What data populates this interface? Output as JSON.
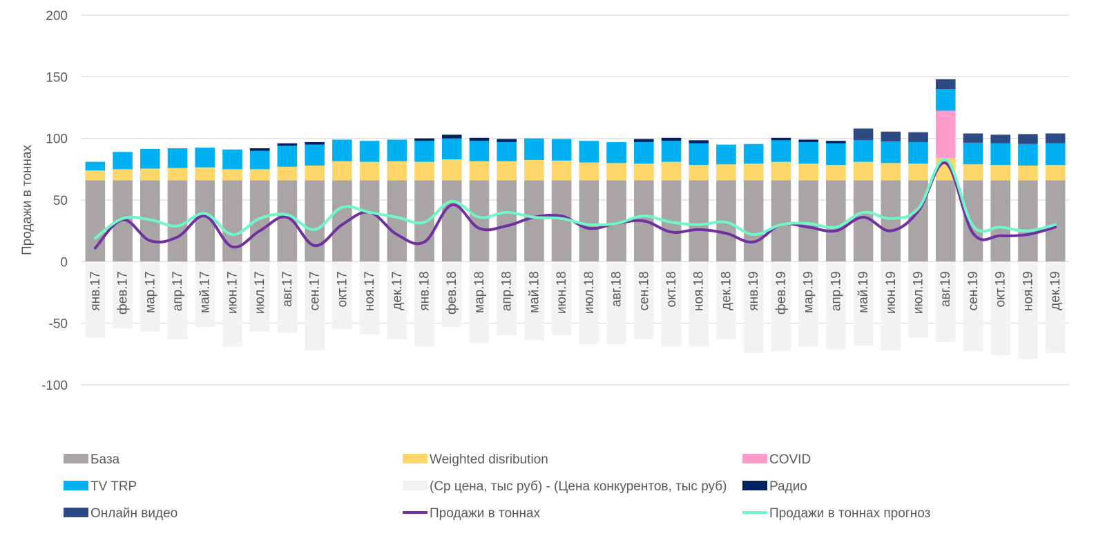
{
  "chart_data": {
    "type": "bar",
    "stacked": true,
    "title": "",
    "xlabel": "",
    "ylabel": "Продажи в тоннах",
    "ylim": [
      -100,
      200
    ],
    "yticks": [
      "200",
      "150",
      "100",
      "50",
      "0",
      "-50",
      "-100"
    ],
    "ytick_values": [
      200,
      150,
      100,
      50,
      0,
      -50,
      -100
    ],
    "grid": true,
    "legend_position": "bottom",
    "categories": [
      "янв.17",
      "фев.17",
      "мар.17",
      "апр.17",
      "май.17",
      "июн.17",
      "июл.17",
      "авг.17",
      "сен.17",
      "окт.17",
      "ноя.17",
      "дек.17",
      "янв.18",
      "фев.18",
      "мар.18",
      "апр.18",
      "май.18",
      "июн.18",
      "июл.18",
      "авг.18",
      "сен.18",
      "окт.18",
      "ноя.18",
      "дек.18",
      "янв.19",
      "фев.19",
      "мар.19",
      "апр.19",
      "май.19",
      "июн.19",
      "июл.19",
      "авг.19",
      "сен.19",
      "окт.19",
      "ноя.19",
      "дек.19"
    ],
    "series": [
      {
        "name": "База",
        "kind": "bar",
        "color": "#a9a5a6",
        "values": [
          66,
          66,
          66,
          66,
          66,
          66,
          66,
          66,
          66,
          66,
          66,
          66,
          66,
          66,
          66,
          66,
          66,
          66,
          66,
          66,
          66,
          66,
          66,
          66,
          66,
          66,
          66,
          66,
          66,
          66,
          66,
          66,
          66,
          66,
          66,
          66
        ]
      },
      {
        "name": "Weighted disribution",
        "kind": "bar",
        "color": "#fcd668",
        "values": [
          8,
          9,
          9.5,
          10,
          10.5,
          9,
          9,
          11,
          12,
          15.5,
          15,
          15.5,
          15,
          17,
          15.5,
          15.5,
          16.5,
          16,
          14.5,
          14,
          13.5,
          15,
          12.5,
          13,
          13.5,
          15,
          13.5,
          12.5,
          15,
          14,
          13.5,
          18,
          13,
          12.5,
          12,
          12.5
        ]
      },
      {
        "name": "COVID",
        "kind": "bar",
        "color": "#fd9cc8",
        "values": [
          0,
          0,
          0,
          0,
          0,
          0,
          0,
          0,
          0,
          0,
          0,
          0,
          0,
          0,
          0,
          0,
          0,
          0,
          0,
          0,
          0,
          0,
          0,
          0,
          0,
          0,
          0,
          0,
          0,
          0,
          0,
          38.5,
          0,
          0,
          0,
          0
        ]
      },
      {
        "name": "TV TRP",
        "kind": "bar",
        "color": "#00b0f0",
        "values": [
          7,
          14,
          16,
          16,
          16,
          16,
          15,
          17,
          17,
          17.5,
          17,
          17.5,
          17,
          17,
          16.5,
          15.5,
          17.5,
          17.5,
          17.5,
          17,
          17.5,
          17,
          17.5,
          16,
          16,
          17.5,
          17.5,
          17.5,
          17.5,
          17.5,
          17.5,
          17.5,
          17.5,
          17.5,
          17.5,
          17.5
        ]
      },
      {
        "name": "(Ср цена, тыс руб) - (Цена конкурентов, тыс руб)",
        "kind": "bar",
        "color": "#f2f2f2",
        "values": [
          -62,
          -54,
          -57,
          -63,
          -53,
          -69,
          -57,
          -58,
          -72,
          -55,
          -59,
          -63,
          -69,
          -53,
          -66,
          -60,
          -64,
          -60,
          -67,
          -67,
          -63,
          -69,
          -69,
          -63,
          -74,
          -73,
          -69,
          -71,
          -68,
          -72,
          -62,
          -65,
          -73,
          -76,
          -79,
          -74
        ]
      },
      {
        "name": "Радио",
        "kind": "bar",
        "color": "#002060",
        "values": [
          0,
          0,
          0,
          0,
          0,
          0,
          2,
          2,
          2,
          0,
          0,
          0,
          2,
          3,
          2.5,
          2.5,
          0,
          0,
          0,
          0,
          2.5,
          2.5,
          2.5,
          0,
          0,
          2,
          2,
          2,
          0,
          0,
          0,
          0,
          0,
          0,
          0,
          0
        ]
      },
      {
        "name": "Онлайн видео",
        "kind": "bar",
        "color": "#2e4a82",
        "values": [
          0,
          0,
          0,
          0,
          0,
          0,
          0,
          0,
          0,
          0,
          0,
          0,
          0,
          0,
          0,
          0,
          0,
          0,
          0,
          0,
          0,
          0,
          0,
          0,
          0,
          0,
          0,
          0,
          9.5,
          8,
          8,
          8,
          7.5,
          7,
          8,
          8
        ]
      },
      {
        "name": "Продажи в тоннах",
        "kind": "line",
        "color": "#7030a0",
        "values": [
          11,
          34,
          17,
          20,
          37,
          12,
          25,
          36,
          13,
          30,
          40,
          22,
          16,
          46,
          27,
          29,
          36,
          37,
          27,
          31,
          33,
          24,
          26,
          23,
          16,
          30,
          28,
          25,
          36,
          25,
          41,
          80,
          23,
          21,
          22,
          28
        ]
      },
      {
        "name": "Продажи в тоннах прогноз",
        "kind": "line",
        "color": "#6ff7c6",
        "values": [
          19,
          35,
          34,
          29,
          39,
          22,
          35,
          38,
          26,
          44,
          40,
          36,
          32,
          49,
          36,
          40,
          36,
          35,
          30,
          31,
          37,
          32,
          30,
          32,
          22,
          30,
          31,
          28,
          40,
          35,
          43,
          83,
          29,
          28,
          25,
          30
        ]
      }
    ]
  },
  "legend": [
    {
      "label": "База",
      "color": "#a9a5a6",
      "kind": "box"
    },
    {
      "label": "Weighted disribution",
      "color": "#fcd668",
      "kind": "box"
    },
    {
      "label": "COVID",
      "color": "#fd9cc8",
      "kind": "box"
    },
    {
      "label": "TV TRP",
      "color": "#00b0f0",
      "kind": "box"
    },
    {
      "label": "(Ср цена, тыс руб) - (Цена конкурентов, тыс руб)",
      "color": "#f2f2f2",
      "kind": "box"
    },
    {
      "label": "Радио",
      "color": "#002060",
      "kind": "box"
    },
    {
      "label": "Онлайн видео",
      "color": "#2e4a82",
      "kind": "box"
    },
    {
      "label": "Продажи в тоннах",
      "color": "#7030a0",
      "kind": "line"
    },
    {
      "label": "Продажи в тоннах прогноз",
      "color": "#6ff7c6",
      "kind": "line"
    }
  ]
}
